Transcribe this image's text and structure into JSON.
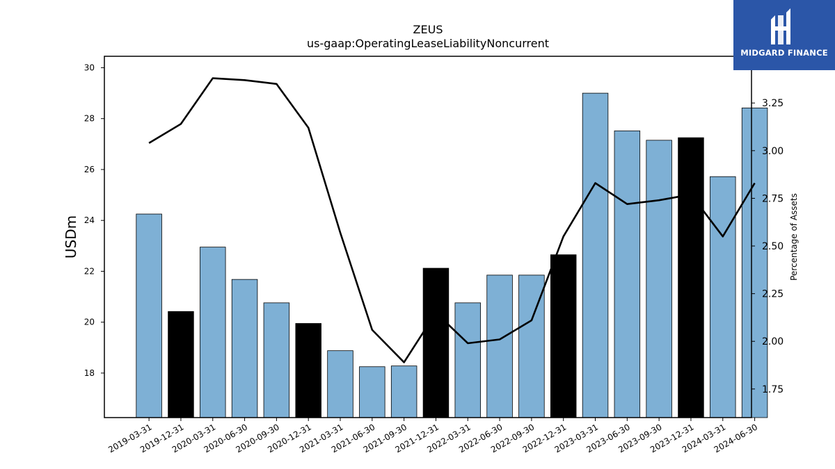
{
  "chart_data": {
    "type": "bar",
    "title": "ZEUS",
    "subtitle": "us-gaap:OperatingLeaseLiabilityNoncurrent",
    "ylabel": "USDm",
    "y2label": "Percentage of Assets",
    "categories": [
      "2019-03-31",
      "2019-12-31",
      "2020-03-31",
      "2020-06-30",
      "2020-09-30",
      "2020-12-31",
      "2021-03-31",
      "2021-06-30",
      "2021-09-30",
      "2021-12-31",
      "2022-03-31",
      "2022-06-30",
      "2022-09-30",
      "2022-12-31",
      "2023-03-31",
      "2023-06-30",
      "2023-09-30",
      "2023-12-31",
      "2024-03-31",
      "2024-06-30"
    ],
    "series": [
      {
        "values": [
          24.25,
          20.42,
          22.95,
          21.68,
          20.76,
          19.95,
          18.88,
          18.25,
          18.28,
          22.12,
          20.76,
          21.85,
          21.85,
          22.65,
          29.0,
          27.52,
          27.15,
          27.25,
          25.72,
          28.42
        ],
        "colors": [
          "#7eb0d5",
          "#000000",
          "#7eb0d5",
          "#7eb0d5",
          "#7eb0d5",
          "#000000",
          "#7eb0d5",
          "#7eb0d5",
          "#7eb0d5",
          "#000000",
          "#7eb0d5",
          "#7eb0d5",
          "#7eb0d5",
          "#000000",
          "#7eb0d5",
          "#7eb0d5",
          "#7eb0d5",
          "#000000",
          "#7eb0d5",
          "#7eb0d5"
        ]
      },
      {
        "axis": "right",
        "type": "line",
        "color": "#000000",
        "values": [
          3.04,
          3.14,
          3.38,
          3.37,
          3.35,
          3.12,
          2.57,
          2.06,
          1.89,
          2.15,
          1.99,
          2.01,
          2.11,
          2.55,
          2.83,
          2.72,
          2.74,
          2.77,
          2.55,
          2.83
        ]
      }
    ],
    "ylim": [
      16.25,
      30.45
    ],
    "y2lim": [
      1.6,
      3.495
    ],
    "yticks": [
      "18",
      "20",
      "22",
      "24",
      "26",
      "28",
      "30"
    ],
    "y2ticks": [
      "1.75",
      "2.00",
      "2.25",
      "2.50",
      "2.75",
      "3.00",
      "3.25"
    ],
    "grid": false
  },
  "logo": {
    "text": "MIDGARD FINANCE",
    "background": "#2b56a8"
  }
}
